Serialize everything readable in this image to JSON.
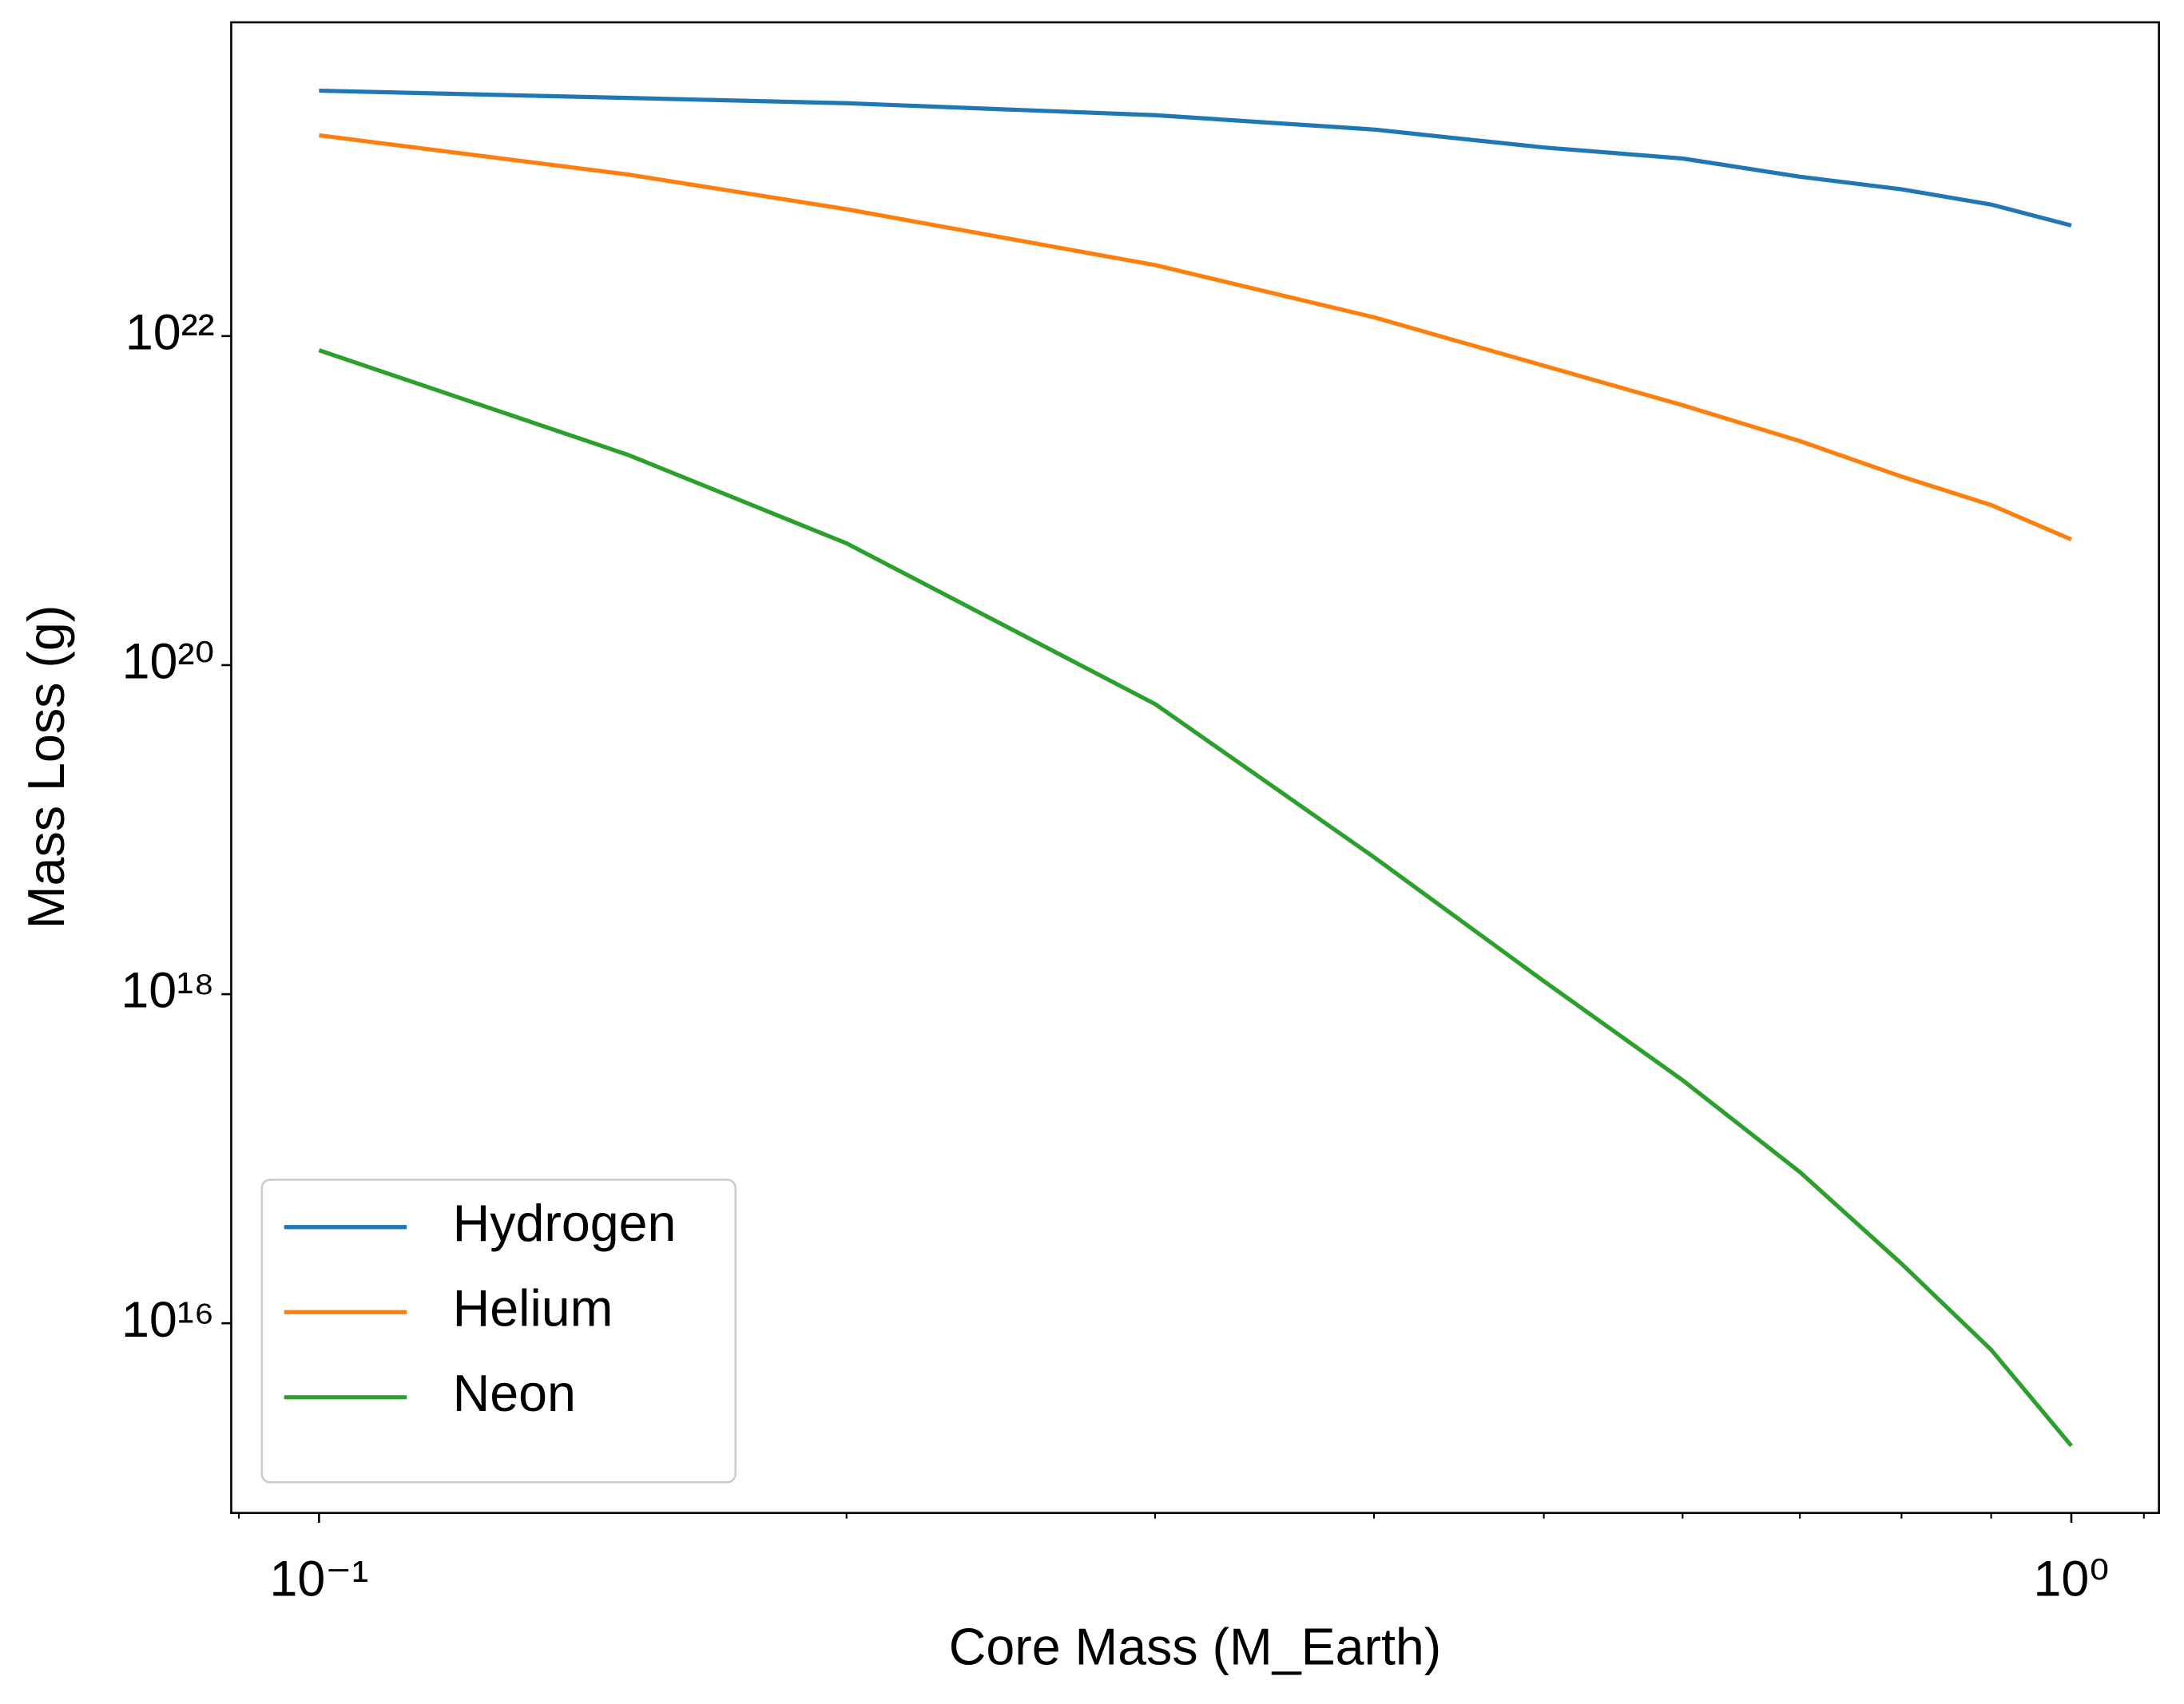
{
  "chart_data": {
    "type": "line",
    "x_label": "Core Mass (M_Earth)",
    "y_label": "Mass Loss (g)",
    "xscale": "log",
    "yscale": "log",
    "x": [
      0.1,
      0.15,
      0.2,
      0.3,
      0.4,
      0.5,
      0.6,
      0.7,
      0.8,
      0.9,
      1.0
    ],
    "series": [
      {
        "name": "Hydrogen",
        "color": "#1f77b4",
        "values": [
          3.1e+23,
          2.8e+23,
          2.6e+23,
          2.2e+23,
          1.8e+23,
          1.4e+23,
          1.2e+23,
          9.3e+22,
          7.8e+22,
          6.3e+22,
          4.7e+22
        ]
      },
      {
        "name": "Helium",
        "color": "#ff7f0e",
        "values": [
          1.66e+23,
          9.6e+22,
          5.9e+22,
          2.7e+22,
          1.3e+22,
          6.6e+21,
          3.8e+21,
          2.3e+21,
          1.4e+21,
          9.4e+20,
          5.8e+20
        ]
      },
      {
        "name": "Neon",
        "color": "#2ca02c",
        "values": [
          8.2e+21,
          1.9e+21,
          5.5e+20,
          5.8e+19,
          6.8e+18,
          1.2e+18,
          3e+17,
          8.3e+16,
          2.3e+16,
          6900000000000000.0,
          1800000000000000.0
        ]
      }
    ],
    "xlim": [
      0.0891,
      1.122
    ],
    "ylim": [
      703000000000000.0,
      8.07e+23
    ],
    "xticks": [
      {
        "value": 0.1,
        "label": "10⁻¹"
      },
      {
        "value": 1,
        "label": "10⁰"
      }
    ],
    "xminorticks": [
      0.09,
      0.2,
      0.3,
      0.4,
      0.5,
      0.6,
      0.7,
      0.8,
      0.9,
      1.1
    ],
    "yticks": [
      {
        "value": 1e+16,
        "label": "10¹⁶"
      },
      {
        "value": 1e+18,
        "label": "10¹⁸"
      },
      {
        "value": 1e+20,
        "label": "10²⁰"
      },
      {
        "value": 1e+22,
        "label": "10²²"
      }
    ],
    "legend": "lower left",
    "grid": false
  }
}
